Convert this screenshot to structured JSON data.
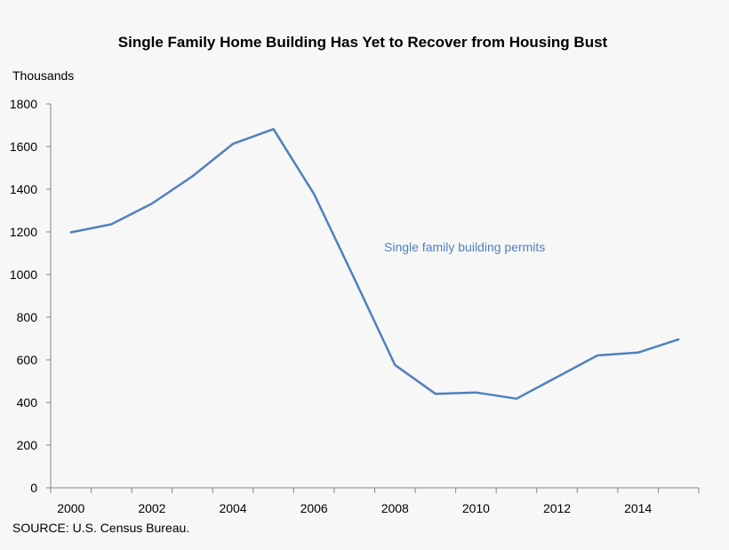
{
  "chart_data": {
    "type": "line",
    "title": "Single Family Home Building Has Yet to Recover from Housing Bust",
    "ylabel": "Thousands",
    "xlabel": "",
    "x": [
      2000,
      2001,
      2002,
      2003,
      2004,
      2005,
      2006,
      2007,
      2008,
      2009,
      2010,
      2011,
      2012,
      2013,
      2014,
      2015
    ],
    "series": [
      {
        "name": "Single family building permits",
        "values": [
          1198,
          1236,
          1333,
          1461,
          1613,
          1682,
          1378,
          980,
          576,
          441,
          447,
          418,
          519,
          621,
          634,
          696
        ]
      }
    ],
    "xlim": [
      1999.5,
      2015.5
    ],
    "ylim": [
      0,
      1800
    ],
    "x_ticks": [
      2000,
      2002,
      2004,
      2006,
      2008,
      2010,
      2012,
      2014
    ],
    "y_ticks": [
      0,
      200,
      400,
      600,
      800,
      1000,
      1200,
      1400,
      1600,
      1800
    ],
    "grid": false,
    "legend": "inline-label",
    "line_color": "#4f81bd",
    "source": "SOURCE: U.S. Census Bureau."
  }
}
